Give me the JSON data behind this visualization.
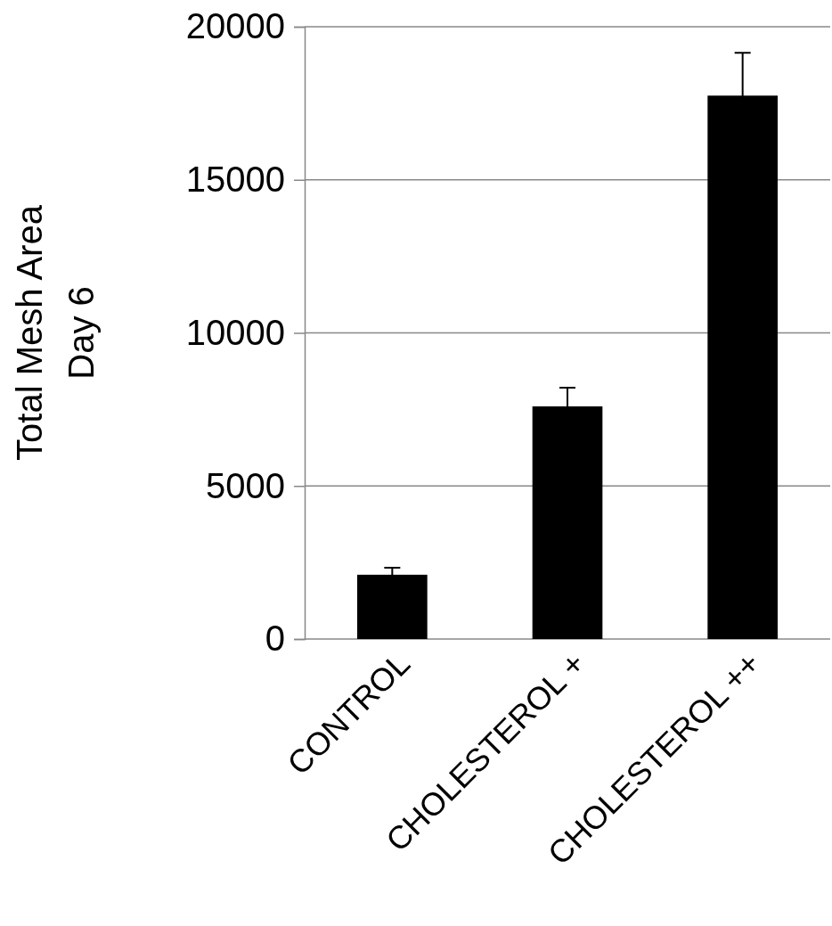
{
  "chart_data": {
    "type": "bar",
    "ylabel": "Total Mesh Area\nDay 6",
    "categories": [
      "CONTROL",
      "CHOLESTEROL +",
      "CHOLESTEROL ++"
    ],
    "values": [
      2100,
      7600,
      17750
    ],
    "errors": [
      230,
      610,
      1400
    ],
    "color": "#000000",
    "ylim": [
      0,
      20000
    ],
    "yticks": [
      0,
      5000,
      10000,
      15000,
      20000
    ],
    "grid": "y"
  }
}
